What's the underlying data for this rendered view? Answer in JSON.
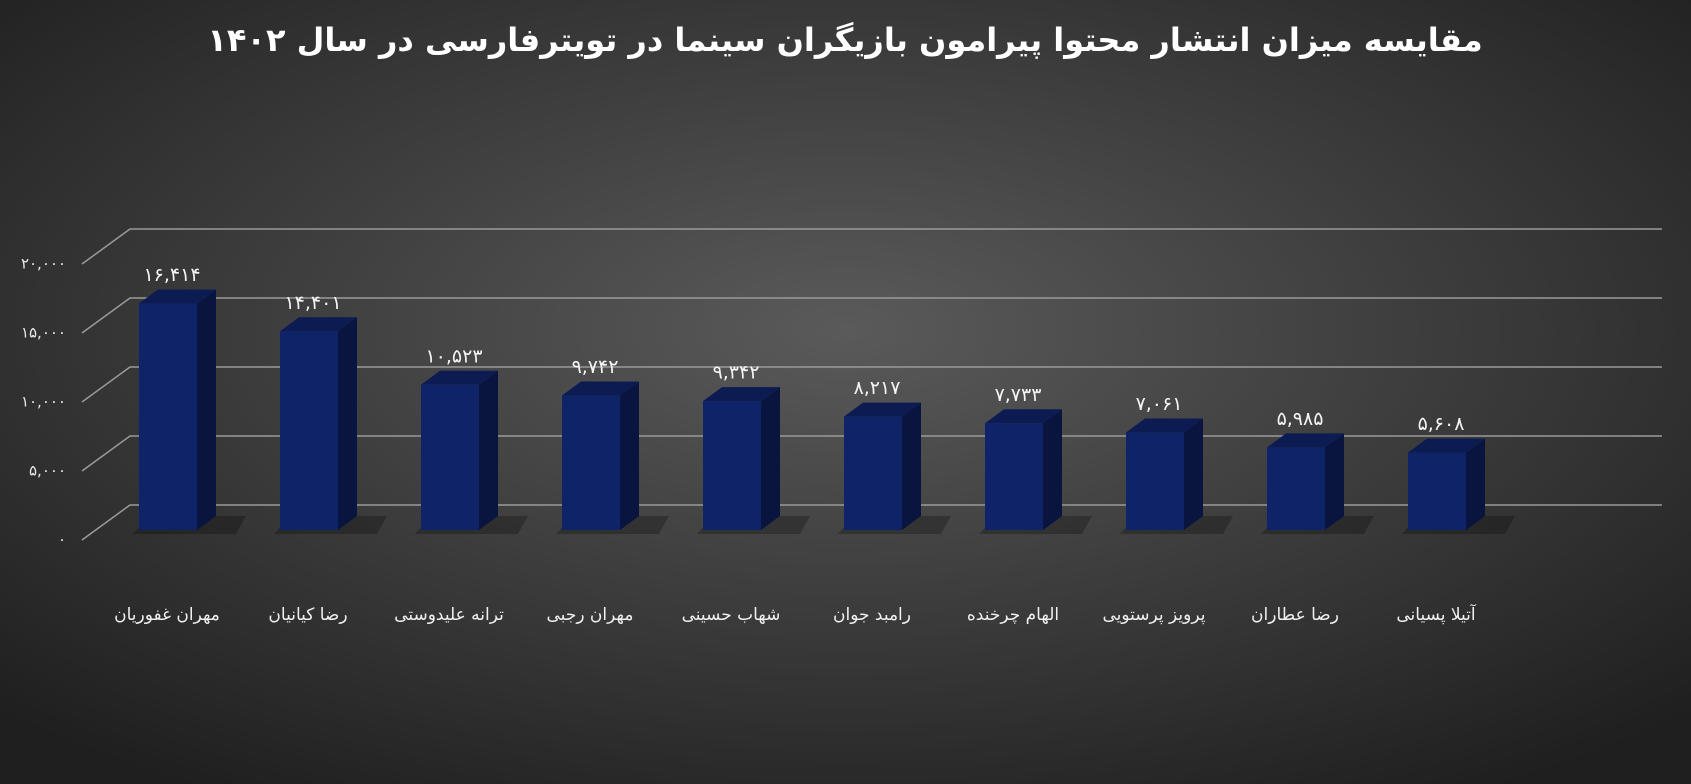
{
  "chart_data": {
    "type": "bar3d",
    "title": "مقایسه میزان انتشار محتوا پیرامون بازیگران سینما در تویترفارسی در سال ۱۴۰۲",
    "categories": [
      "مهران غفوریان",
      "رضا کیانیان",
      "ترانه علیدوستی",
      "مهران رجبی",
      "شهاب حسینی",
      "رامبد جوان",
      "الهام چرخنده",
      "پرویز پرستویی",
      "رضا عطاران",
      "آتیلا پسیانی"
    ],
    "values": [
      16414,
      14401,
      10523,
      9742,
      9342,
      8217,
      7733,
      7061,
      5985,
      5608
    ],
    "value_labels": [
      "۱۶,۴۱۴",
      "۱۴,۴۰۱",
      "۱۰,۵۲۳",
      "۹,۷۴۲",
      "۹,۳۴۲",
      "۸,۲۱۷",
      "۷,۷۳۳",
      "۷,۰۶۱",
      "۵,۹۸۵",
      "۵,۶۰۸"
    ],
    "color": "#0f2468",
    "ylim": [
      0,
      20000
    ],
    "yticks": [
      {
        "value": 0,
        "label": "۰"
      },
      {
        "value": 5000,
        "label": "۵,۰۰۰"
      },
      {
        "value": 10000,
        "label": "۱۰,۰۰۰"
      },
      {
        "value": 15000,
        "label": "۱۵,۰۰۰"
      },
      {
        "value": 20000,
        "label": "۲۰,۰۰۰"
      }
    ],
    "grid": true
  }
}
